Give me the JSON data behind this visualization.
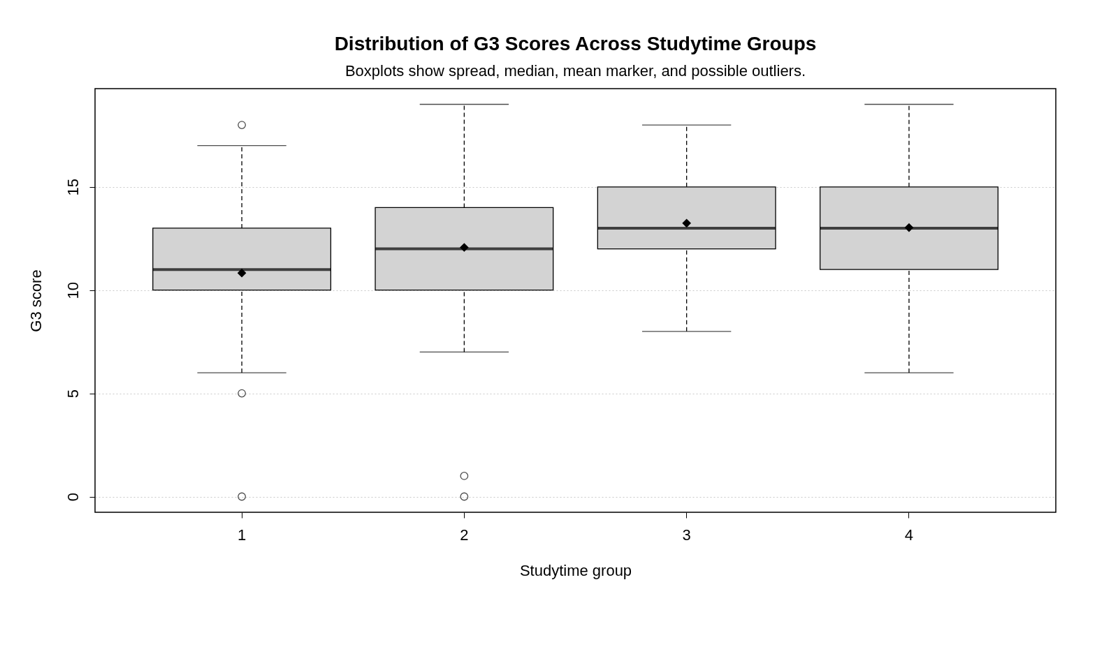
{
  "chart_data": {
    "type": "box",
    "title": "Distribution of G3 Scores Across Studytime Groups",
    "subtitle": "Boxplots show spread, median, mean marker, and possible outliers.",
    "xlabel": "Studytime group",
    "ylabel": "G3 score",
    "categories": [
      "1",
      "2",
      "3",
      "4"
    ],
    "boxes": [
      {
        "low": 6,
        "q1": 10,
        "median": 11,
        "q3": 13,
        "high": 17,
        "mean": 10.83,
        "outliers": [
          0,
          5,
          18
        ]
      },
      {
        "low": 7,
        "q1": 10,
        "median": 12,
        "q3": 14,
        "high": 19,
        "mean": 12.07,
        "outliers": [
          0,
          1
        ]
      },
      {
        "low": 8,
        "q1": 12,
        "median": 13,
        "q3": 15,
        "high": 18,
        "mean": 13.24
      },
      {
        "low": 6,
        "q1": 11,
        "median": 13,
        "q3": 15,
        "high": 19,
        "mean": 13.03
      }
    ],
    "ylim": [
      -0.76,
      19.76
    ],
    "yticks": [
      0,
      5,
      10,
      15
    ],
    "grid": "y"
  }
}
